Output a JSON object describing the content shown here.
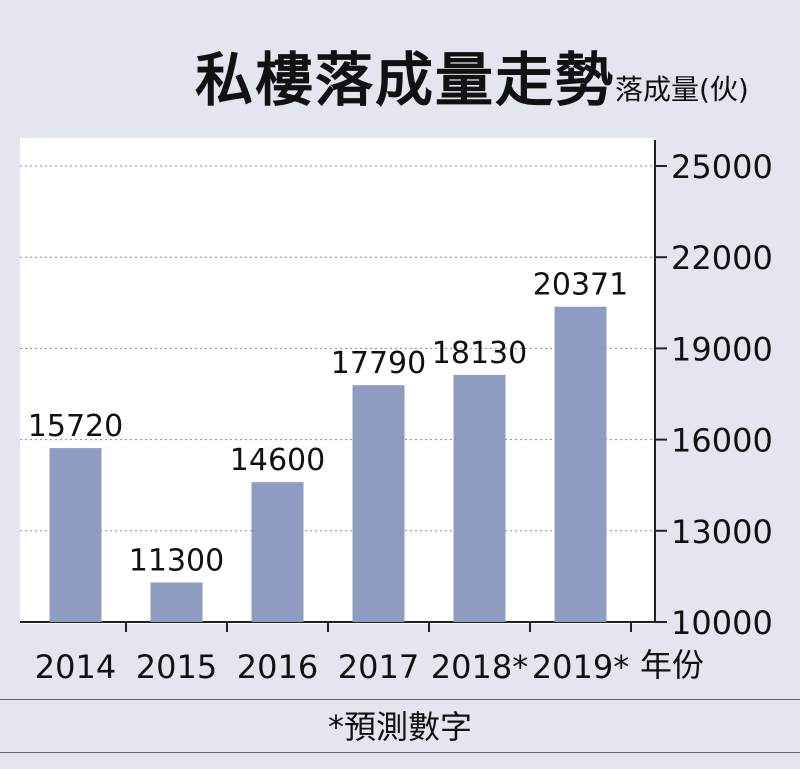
{
  "title": "私樓落成量走勢",
  "unit_label": "落成量(伙)",
  "x_unit_label": "年份",
  "footnote": "*預測數字",
  "colors": {
    "bar": "#8e9cc2",
    "background": "#e4e6ef",
    "plot_background": "#ffffff",
    "gridline": "#888888",
    "text": "#111111"
  },
  "chart_data": {
    "type": "bar",
    "categories": [
      "2014",
      "2015",
      "2016",
      "2017",
      "2018*",
      "2019*"
    ],
    "values": [
      15720,
      11300,
      14600,
      17790,
      18130,
      20371
    ],
    "data_labels": [
      "15720",
      "11300",
      "14600",
      "17790",
      "18130",
      "20371"
    ],
    "y_ticks": [
      10000,
      13000,
      16000,
      19000,
      22000,
      25000
    ],
    "y_tick_labels": [
      "10000",
      "13000",
      "16000",
      "19000",
      "22000",
      "25000"
    ],
    "ylim": [
      10000,
      25000
    ],
    "y_axis_side": "right",
    "grid": true
  }
}
